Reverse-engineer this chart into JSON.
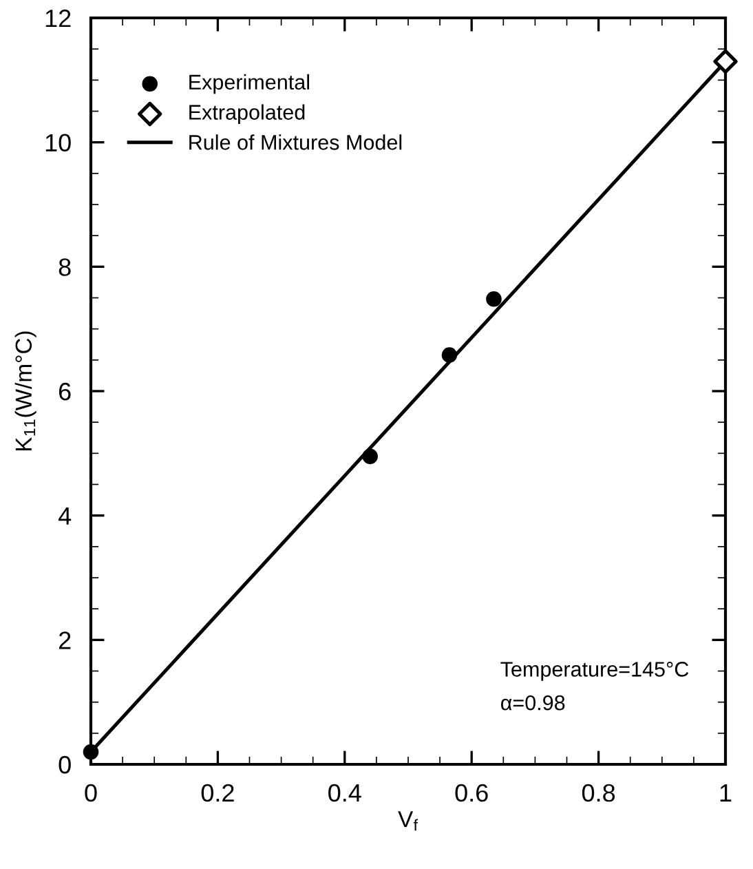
{
  "chart_data": {
    "type": "scatter",
    "xlabel": "V$_{f}$",
    "ylabel": "K$_{11}$(W/m°C)",
    "xlim": [
      0,
      1
    ],
    "ylim": [
      0,
      12
    ],
    "xticks": [
      0,
      0.2,
      0.4,
      0.6,
      0.8,
      1
    ],
    "yticks": [
      0,
      2,
      4,
      6,
      8,
      10,
      12
    ],
    "series": [
      {
        "name": "Experimental",
        "marker": "circle",
        "color": "#000000",
        "x": [
          0,
          0.44,
          0.565,
          0.635
        ],
        "values": [
          0.2,
          4.95,
          6.58,
          7.48
        ]
      },
      {
        "name": "Extrapolated",
        "marker": "diamond",
        "color": "#000000",
        "x": [
          1.0
        ],
        "values": [
          11.3
        ]
      },
      {
        "name": "Rule of Mixtures Model",
        "type": "line",
        "marker": "none",
        "color": "#000000",
        "x": [
          0,
          1.0
        ],
        "values": [
          0.2,
          11.3
        ]
      }
    ],
    "annotations": [
      "Temperature=145°C",
      "α=0.98"
    ],
    "legend": "top left",
    "grid": false
  }
}
